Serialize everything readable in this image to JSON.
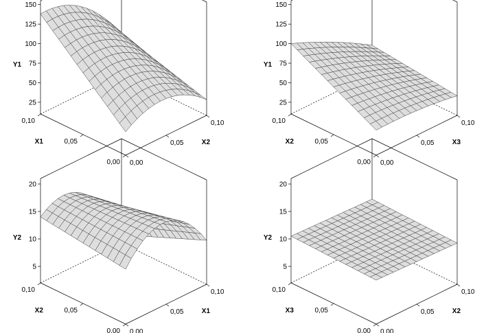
{
  "chart_data": [
    {
      "type": "surface",
      "title": "",
      "xlabel": "X1",
      "ylabel": "X2",
      "zlabel": "Y1",
      "x_ticks": [
        "0,00",
        "0,05",
        "0,10"
      ],
      "y_ticks": [
        "0,00",
        "0,05",
        "0,10"
      ],
      "z_ticks": [
        "25",
        "50",
        "75",
        "100",
        "125",
        "150"
      ],
      "xlim": [
        0,
        0.1
      ],
      "ylim": [
        0,
        0.1
      ],
      "zlim": [
        10,
        155
      ],
      "grid": 14,
      "surface_corners": {
        "x0_y0": 40,
        "x0_y1": 30,
        "x1_y0": 138,
        "x1_y1": 62
      },
      "curvature": 22
    },
    {
      "type": "surface",
      "title": "",
      "xlabel": "X2",
      "ylabel": "X3",
      "zlabel": "Y1",
      "x_ticks": [
        "0,00",
        "0,05",
        "0,10"
      ],
      "y_ticks": [
        "0,00",
        "0,05",
        "0,10"
      ],
      "z_ticks": [
        "25",
        "50",
        "75",
        "100",
        "125",
        "150"
      ],
      "xlim": [
        0,
        0.1
      ],
      "ylim": [
        0,
        0.1
      ],
      "zlim": [
        10,
        155
      ],
      "grid": 14,
      "surface_corners": {
        "x0_y0": 42,
        "x0_y1": 35,
        "x1_y0": 100,
        "x1_y1": 47
      },
      "curvature": 3
    },
    {
      "type": "surface",
      "title": "",
      "xlabel": "X2",
      "ylabel": "X1",
      "zlabel": "Y2",
      "x_ticks": [
        "0,00",
        "0,05",
        "0,10"
      ],
      "y_ticks": [
        "0,00",
        "0,05",
        "0,10"
      ],
      "z_ticks": [
        "5",
        "10",
        "15",
        "20"
      ],
      "xlim": [
        0,
        0.1
      ],
      "ylim": [
        0,
        0.1
      ],
      "zlim": [
        2,
        21
      ],
      "grid": 14,
      "surface_corners": {
        "x0_y0": 12,
        "x0_y1": 10,
        "x1_y0": 14,
        "x1_y1": 3.5
      },
      "curvature": 6
    },
    {
      "type": "surface",
      "title": "",
      "xlabel": "X3",
      "ylabel": "X2",
      "zlabel": "Y2",
      "x_ticks": [
        "0,00",
        "0,05",
        "0,10"
      ],
      "y_ticks": [
        "0,00",
        "0,05",
        "0,10"
      ],
      "z_ticks": [
        "5",
        "10",
        "15",
        "20"
      ],
      "xlim": [
        0,
        0.1
      ],
      "ylim": [
        0,
        0.1
      ],
      "zlim": [
        2,
        21
      ],
      "grid": 14,
      "surface_corners": {
        "x0_y0": 10,
        "x0_y1": 9.5,
        "x1_y0": 10.5,
        "x1_y1": 10
      },
      "curvature": 0
    }
  ]
}
